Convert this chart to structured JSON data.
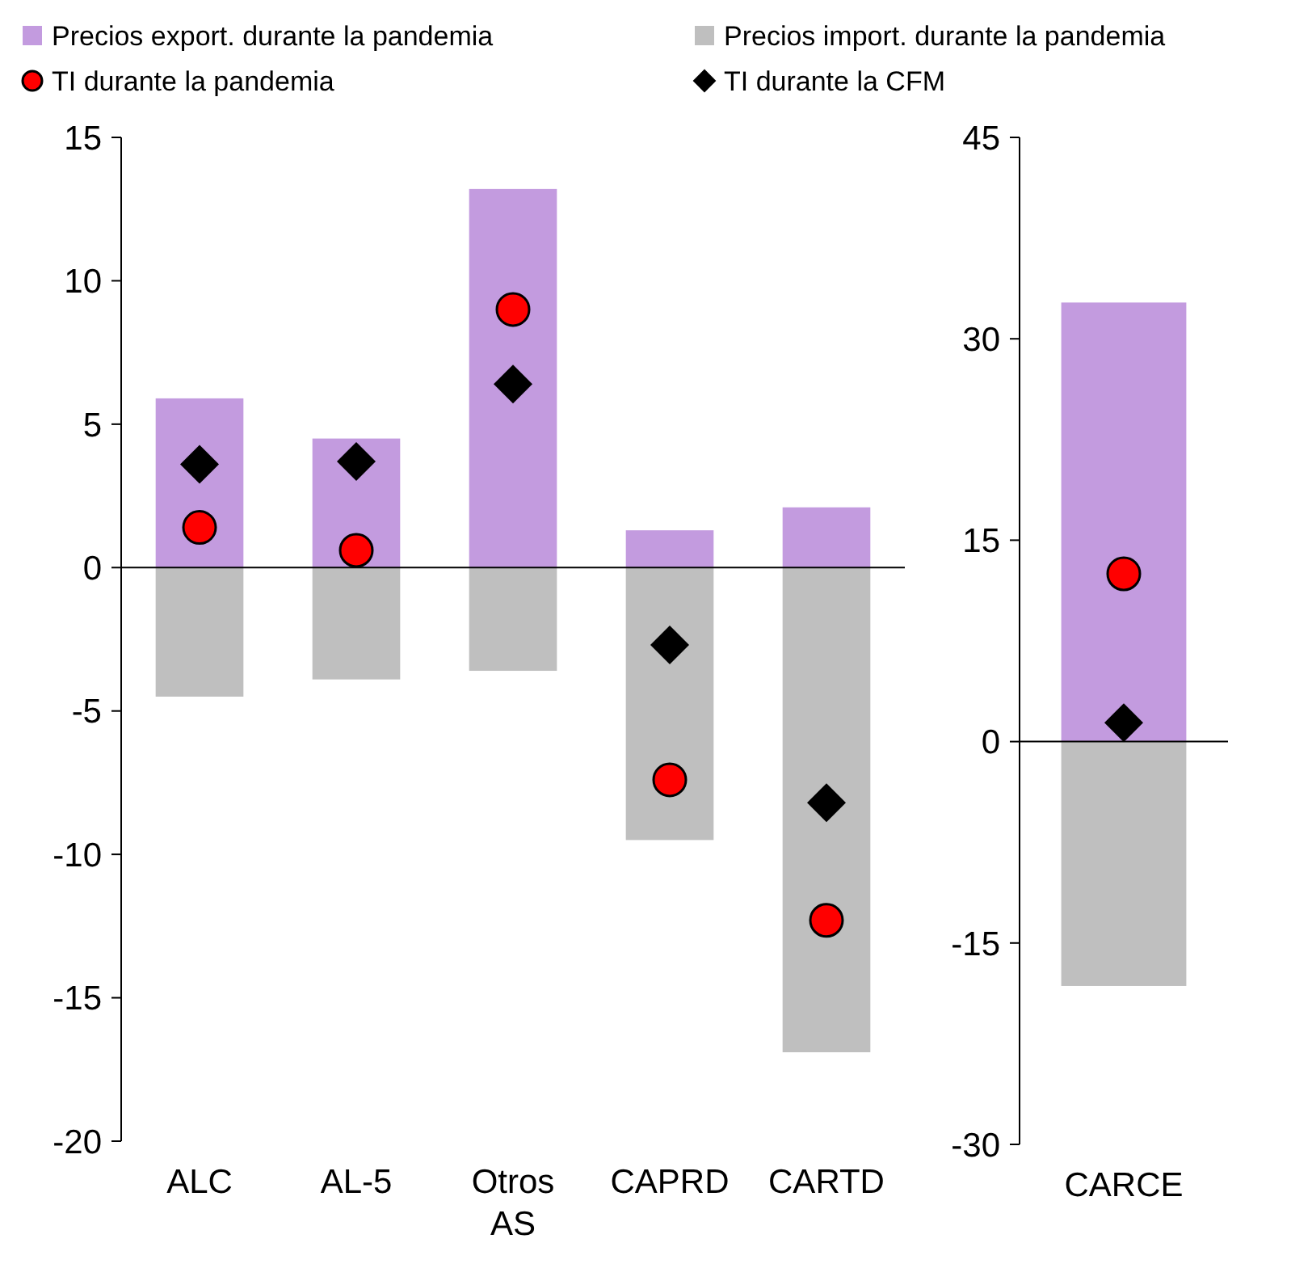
{
  "chart_data": [
    {
      "type": "bar",
      "stacked": true,
      "legend": "top",
      "categories": [
        "ALC",
        "AL-5",
        "Otros AS",
        "CAPRD",
        "CARTD"
      ],
      "ylim": [
        -20,
        15
      ],
      "yticks": [
        -20,
        -15,
        -10,
        -5,
        0,
        5,
        10,
        15
      ],
      "series": [
        {
          "name": "Precios export. durante la pandemia",
          "color": "#c39bdf",
          "values": [
            5.9,
            4.5,
            13.2,
            1.3,
            2.1
          ]
        },
        {
          "name": "Precios import. durante la pandemia",
          "color": "#bfbfbf",
          "values": [
            -4.5,
            -3.9,
            -3.6,
            -9.5,
            -16.9
          ]
        },
        {
          "name": "TI durante la pandemia",
          "type": "scatter",
          "marker": "circle",
          "color": "#ff0000",
          "x": [
            "ALC",
            "AL-5",
            "Otros AS",
            "CAPRD",
            "CARTD"
          ],
          "values": [
            1.4,
            0.6,
            9.0,
            -7.4,
            -12.3
          ]
        },
        {
          "name": "TI durante la CFM",
          "type": "scatter",
          "marker": "diamond",
          "color": "#000000",
          "x": [
            "ALC",
            "AL-5",
            "Otros AS",
            "CAPRD",
            "CARTD"
          ],
          "values": [
            3.6,
            3.7,
            6.4,
            -2.7,
            -8.2
          ]
        }
      ]
    },
    {
      "type": "bar",
      "stacked": true,
      "categories": [
        "CARCE"
      ],
      "ylim": [
        -30,
        45
      ],
      "yticks": [
        -30,
        -15,
        0,
        15,
        30,
        45
      ],
      "series": [
        {
          "color": "#c39bdf",
          "values": [
            32.7
          ]
        },
        {
          "color": "#bfbfbf",
          "values": [
            -18.2
          ]
        },
        {
          "type": "scatter",
          "marker": "circle",
          "color": "#ff0000",
          "x": [
            "CARCE"
          ],
          "values": [
            12.5
          ]
        },
        {
          "type": "scatter",
          "marker": "diamond",
          "color": "#000000",
          "x": [
            "CARCE"
          ],
          "values": [
            1.4
          ]
        }
      ]
    }
  ]
}
